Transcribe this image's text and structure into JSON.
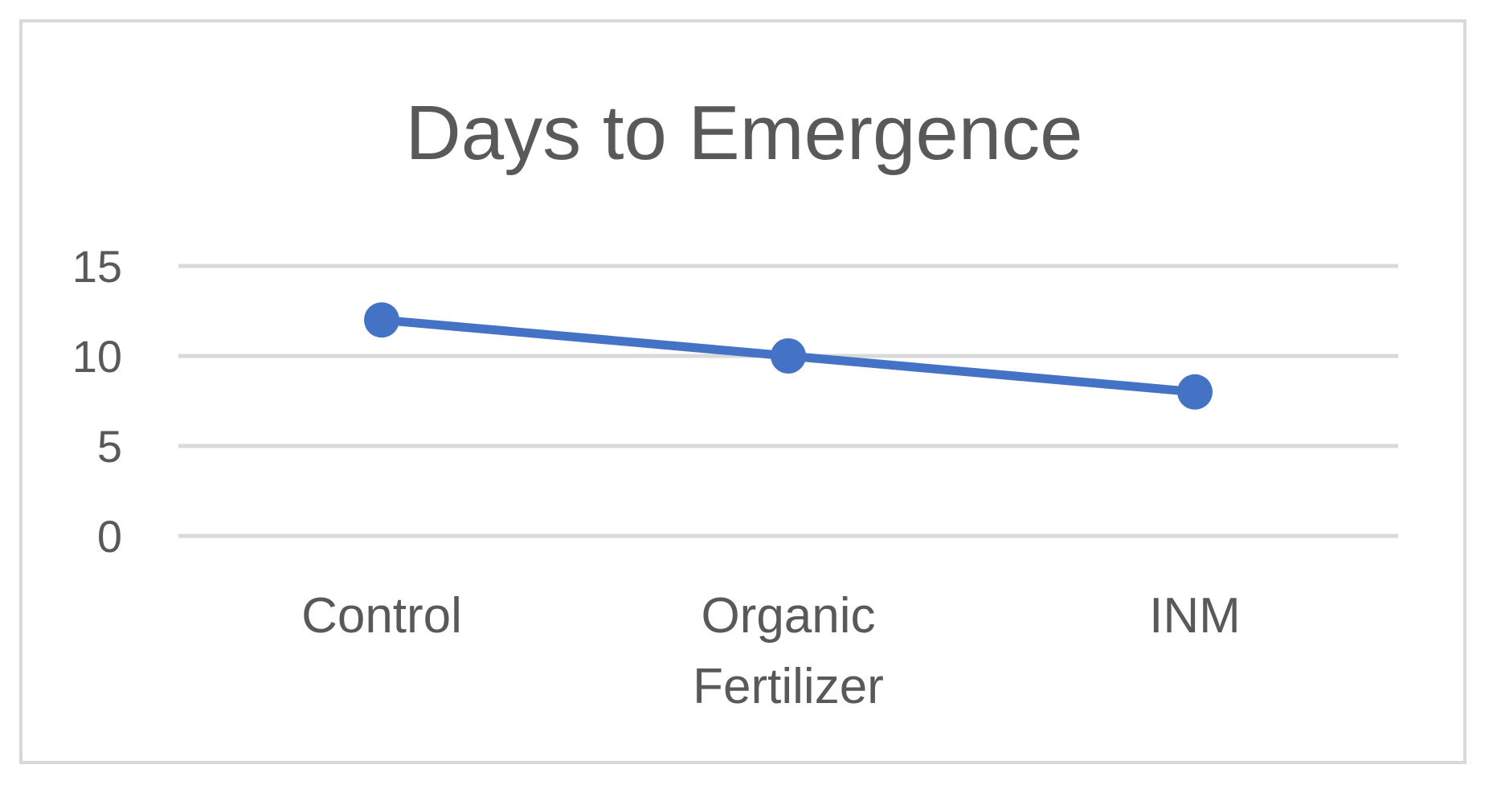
{
  "chart_data": {
    "type": "line",
    "title": "Days to Emergence",
    "xlabel": "",
    "ylabel": "",
    "categories": [
      [
        "Control"
      ],
      [
        "Organic",
        "Fertilizer"
      ],
      [
        "INM"
      ]
    ],
    "series": [
      {
        "values": [
          12,
          10,
          8
        ]
      }
    ],
    "ylim": [
      0,
      15
    ],
    "yticks": [
      "0",
      "5",
      "10",
      "15"
    ],
    "grid": true,
    "legend": "none",
    "colors": {
      "line": "#4472c4",
      "grid": "#d9d9d9",
      "text": "#595959",
      "border": "#d9d9d9"
    }
  }
}
